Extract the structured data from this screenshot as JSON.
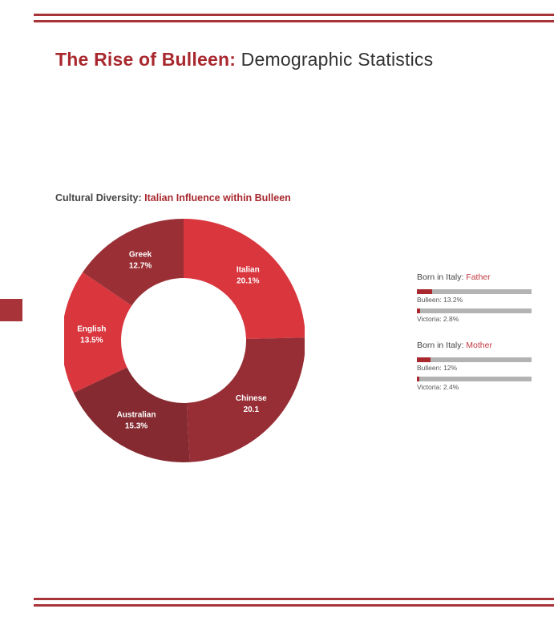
{
  "header": {
    "title_strong": "The Rise of Bulleen:",
    "title_rest": " Demographic Statistics"
  },
  "section": {
    "subtitle_plain": "Cultural Diversity: ",
    "subtitle_strong": "Italian Influence within Bulleen"
  },
  "colors": {
    "accent": "#a8282e",
    "rule": "#a8343a",
    "bar_track": "#b3b3b3"
  },
  "chart_data": [
    {
      "type": "pie",
      "donut": true,
      "title": "Italian Influence within Bulleen",
      "slices": [
        {
          "label": "Italian",
          "value_text": "20.1%",
          "value": 20.1,
          "color": "#d9363e"
        },
        {
          "label": "Chinese",
          "value_text": "20.1",
          "value": 20.1,
          "color": "#972e35"
        },
        {
          "label": "Australian",
          "value_text": "15.3%",
          "value": 15.3,
          "color": "#842a30"
        },
        {
          "label": "English",
          "value_text": "13.5%",
          "value": 13.5,
          "color": "#d9363e"
        },
        {
          "label": "Greek",
          "value_text": "12.7%",
          "value": 12.7,
          "color": "#9a3036"
        }
      ]
    },
    {
      "type": "bar",
      "title_plain": "Born in Italy: ",
      "title_accent": "Father",
      "categories": [
        "Bulleen",
        "Victoria"
      ],
      "values": [
        13.2,
        2.8
      ],
      "labels": [
        "Bulleen: 13.2%",
        "Victoria: 2.8%"
      ],
      "xlim": [
        0,
        100
      ]
    },
    {
      "type": "bar",
      "title_plain": "Born in Italy: ",
      "title_accent": "Mother",
      "categories": [
        "Bulleen",
        "Victoria"
      ],
      "values": [
        12,
        2.4
      ],
      "labels": [
        "Bulleen: 12%",
        "Victoria: 2.4%"
      ],
      "xlim": [
        0,
        100
      ]
    }
  ]
}
